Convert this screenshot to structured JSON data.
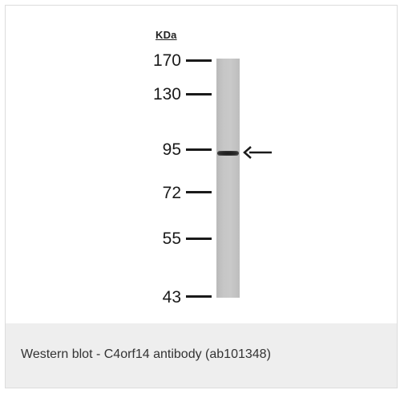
{
  "figure": {
    "unit_label": "KDa",
    "markers": [
      {
        "label": "170"
      },
      {
        "label": "130"
      },
      {
        "label": "95"
      },
      {
        "label": "72"
      },
      {
        "label": "55"
      },
      {
        "label": "43"
      }
    ]
  },
  "caption": "Western blot - C4orf14 antibody (ab101348)",
  "icons": {
    "band_arrow": "left-arrow-icon"
  }
}
